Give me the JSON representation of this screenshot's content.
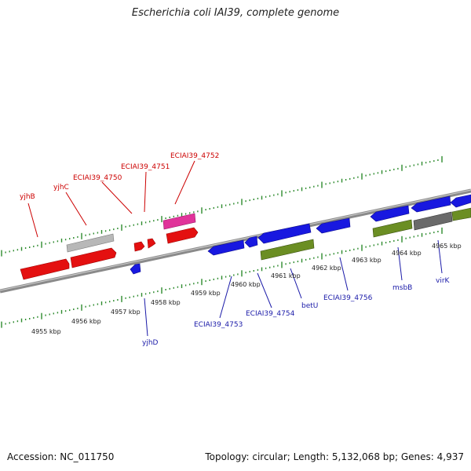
{
  "title": "Escherichia coli IAI39, complete genome",
  "footer": {
    "accession": "Accession: NC_011750",
    "summary": "Topology: circular; Length: 5,132,068 bp; Genes: 4,937"
  },
  "colors": {
    "backbone": "#8a8a8a",
    "tick": "#2e8b2e",
    "top_label": "#cc0000",
    "bottom_label": "#1a1aa8",
    "red_gene": "#e41010",
    "blue_gene": "#1818e0",
    "green_gene": "#6b8e23",
    "gray_gene": "#b8b8b8",
    "dark_gray_gene": "#6a6a6a",
    "pink_gene": "#e0349a"
  },
  "scale_labels": [
    "4955 kbp",
    "4956 kbp",
    "4957 kbp",
    "4958 kbp",
    "4959 kbp",
    "4960 kbp",
    "4961 kbp",
    "4962 kbp",
    "4963 kbp",
    "4964 kbp",
    "4965 kbp"
  ],
  "top_gene_labels": [
    "yjhB",
    "yjhC",
    "ECIAI39_4750",
    "ECIAI39_4751",
    "ECIAI39_4752"
  ],
  "bottom_gene_labels": [
    "yjhD",
    "ECIAI39_4753",
    "ECIAI39_4754",
    "betU",
    "ECIAI39_4756",
    "msbB",
    "virK"
  ]
}
